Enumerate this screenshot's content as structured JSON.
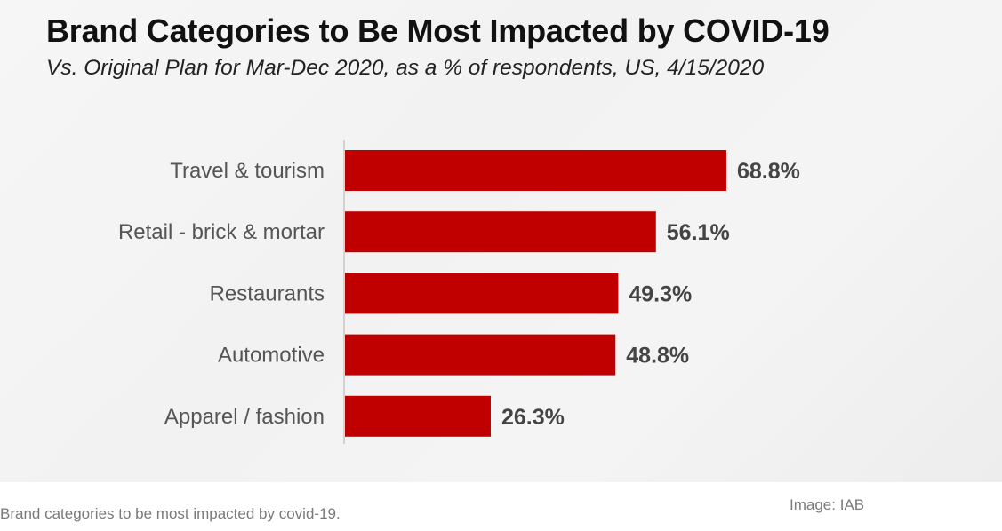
{
  "chart_data": {
    "type": "bar",
    "orientation": "horizontal",
    "title": "Brand Categories to Be Most Impacted by COVID-19",
    "subtitle": "Vs. Original Plan for Mar-Dec 2020, as a % of respondents, US, 4/15/2020",
    "categories": [
      "Travel & tourism",
      "Retail - brick & mortar",
      "Restaurants",
      "Automotive",
      "Apparel / fashion"
    ],
    "values": [
      68.8,
      56.1,
      49.3,
      48.8,
      26.3
    ],
    "value_labels": [
      "68.8%",
      "56.1%",
      "49.3%",
      "48.8%",
      "26.3%"
    ],
    "unit": "%",
    "xlabel": "",
    "ylabel": "",
    "xlim": [
      0,
      100
    ],
    "grid": false,
    "legend": "none",
    "bar_color": "#c00000"
  },
  "caption": "Brand categories to be most impacted by covid-19.",
  "credit": "Image: IAB"
}
